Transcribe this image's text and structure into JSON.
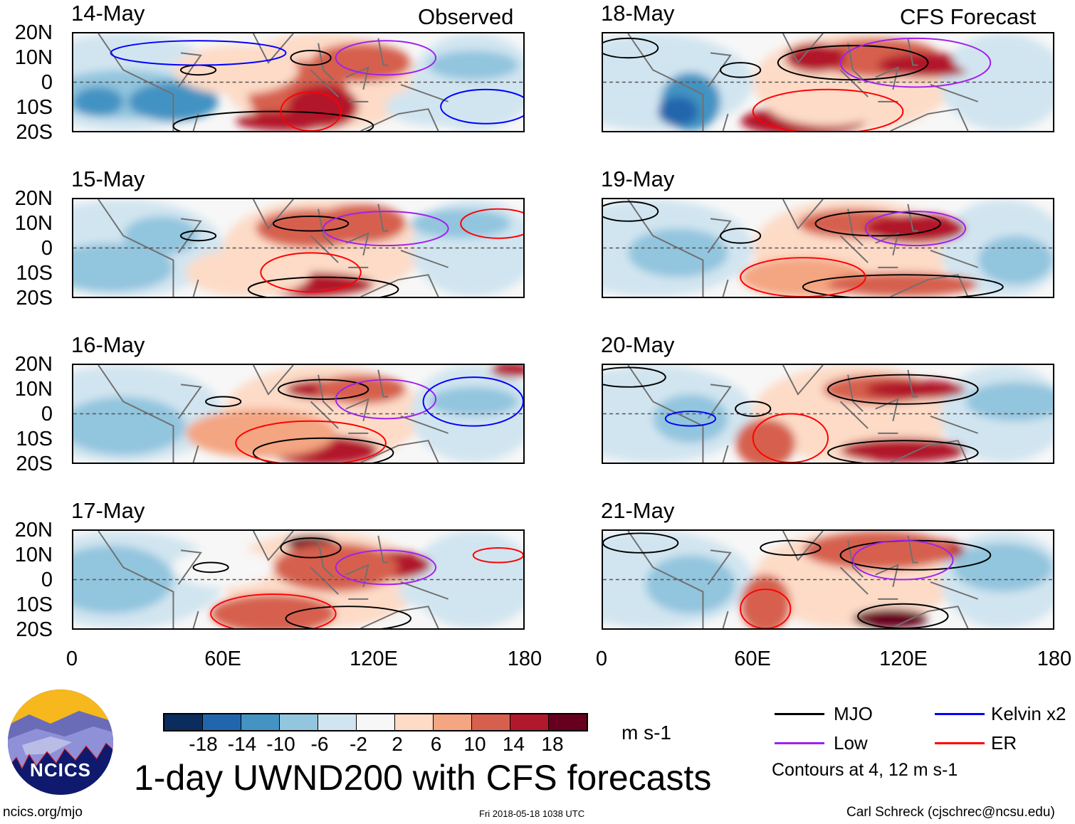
{
  "left_column_title": "Observed",
  "right_column_title": "CFS Forecast",
  "panels_left": [
    {
      "date": "14-May"
    },
    {
      "date": "15-May"
    },
    {
      "date": "16-May"
    },
    {
      "date": "17-May"
    }
  ],
  "panels_right": [
    {
      "date": "18-May"
    },
    {
      "date": "19-May"
    },
    {
      "date": "20-May"
    },
    {
      "date": "21-May"
    }
  ],
  "lat_labels": [
    "20N",
    "10N",
    "0",
    "10S",
    "20S"
  ],
  "lon_labels": [
    "0",
    "60E",
    "120E",
    "180"
  ],
  "colorbar": {
    "colors": [
      "#0a2d5e",
      "#2166ac",
      "#4393c3",
      "#92c5de",
      "#d1e5f0",
      "#f7f7f7",
      "#fddbc7",
      "#f4a582",
      "#d6604d",
      "#b2182b",
      "#67001f"
    ],
    "tick_labels": [
      "-18",
      "-14",
      "-10",
      "-6",
      "-2",
      "2",
      "6",
      "10",
      "14",
      "18"
    ],
    "units": "m s-1"
  },
  "title": "1-day UWND200 with CFS forecasts",
  "legend": {
    "items": [
      {
        "label": "MJO",
        "color": "#000000"
      },
      {
        "label": "Kelvin x2",
        "color": "#0000ff"
      },
      {
        "label": "Low",
        "color": "#a020f0"
      },
      {
        "label": "ER",
        "color": "#ff0000"
      }
    ],
    "note": "Contours at 4, 12 m s-1"
  },
  "logo": {
    "text": "NCICS"
  },
  "footer": {
    "url": "ncics.org/mjo",
    "timestamp": "Fri 2018-05-18 1038 UTC",
    "credit": "Carl Schreck (cjschrec@ncsu.edu)"
  }
}
